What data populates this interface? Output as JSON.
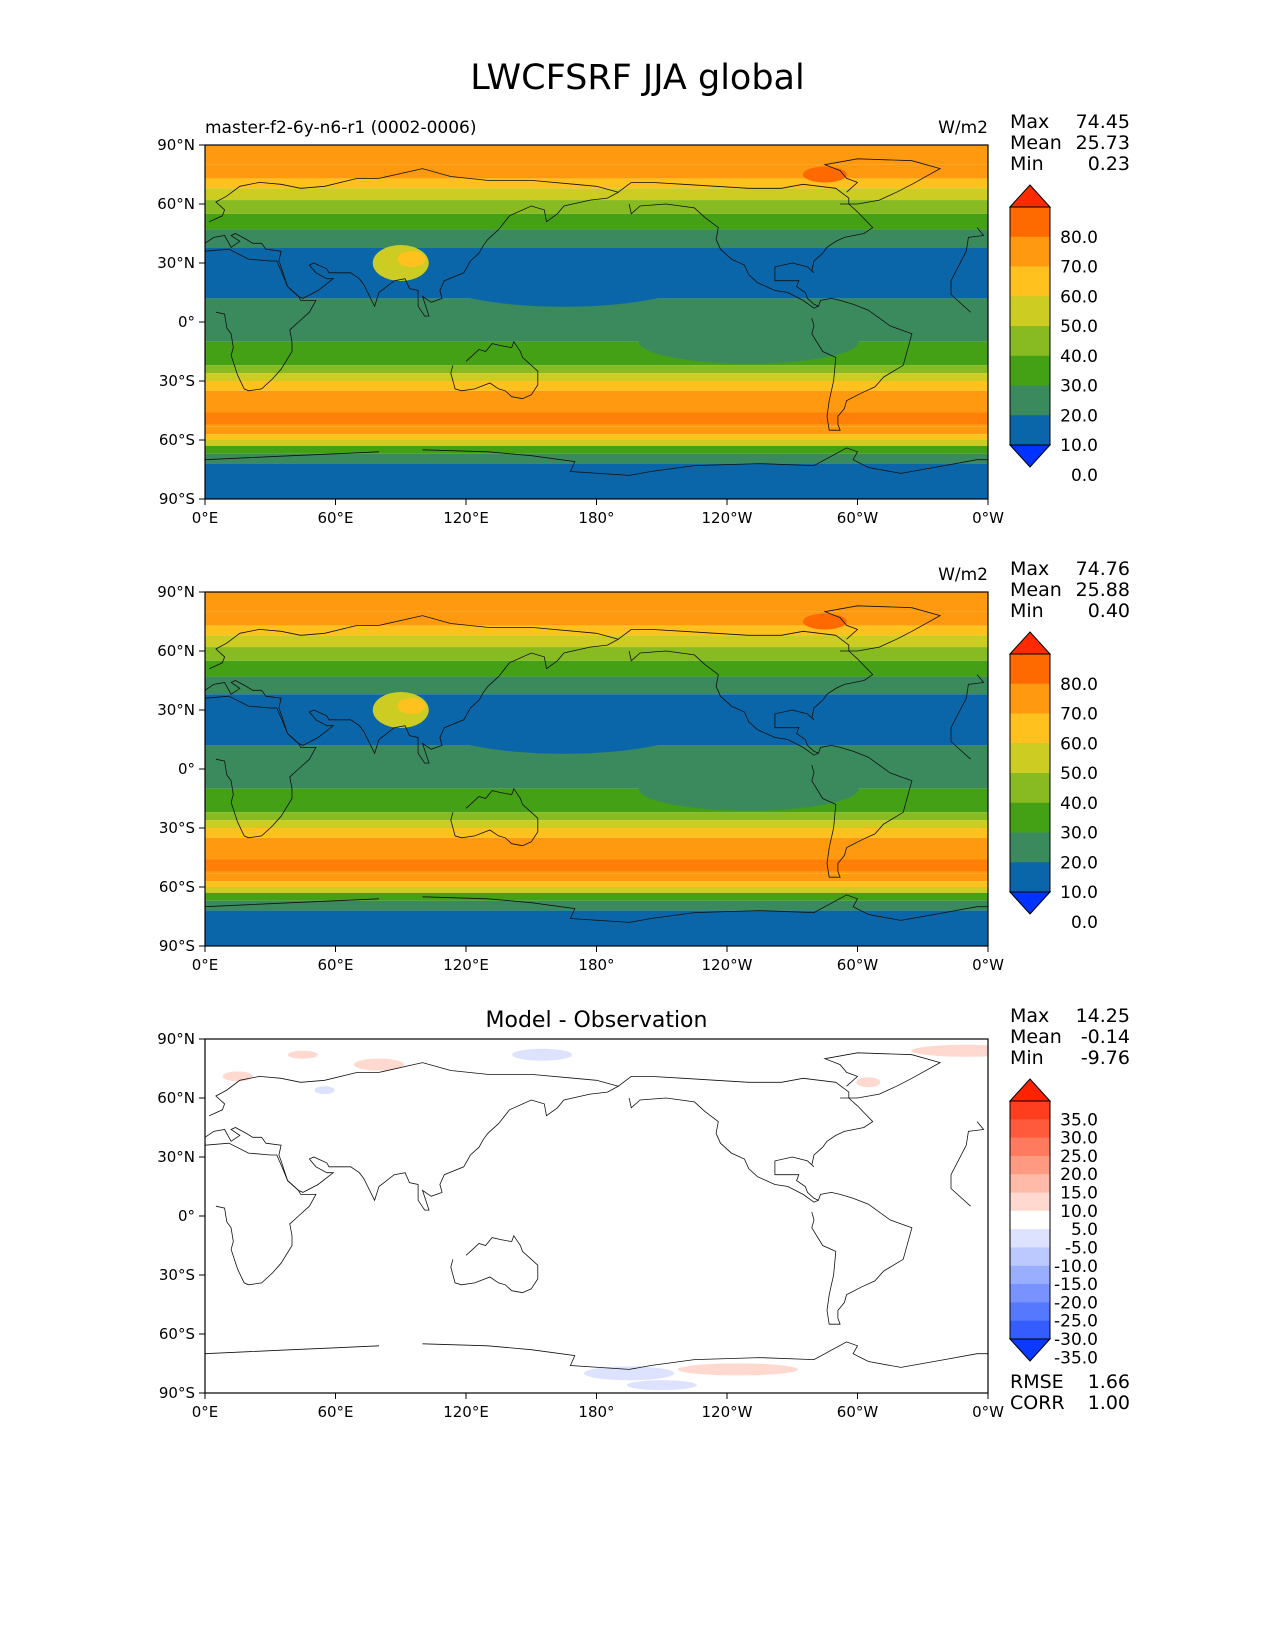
{
  "title": "LWCFSRF JJA global",
  "lon_ticks": [
    "0°E",
    "60°E",
    "120°E",
    "180°",
    "120°W",
    "60°W",
    "0°W"
  ],
  "lat_ticks": [
    "90°N",
    "60°N",
    "30°N",
    "0°",
    "30°S",
    "60°S",
    "90°S"
  ],
  "panels": [
    {
      "id": "test",
      "left_title": "master-f2-6y-n6-r1 (0002-0006)",
      "center_title": "",
      "units": "W/m2",
      "stats": [
        {
          "label": "Max",
          "value": "74.45"
        },
        {
          "label": "Mean",
          "value": "25.73"
        },
        {
          "label": "Min",
          "value": "0.23"
        }
      ],
      "colorbar": {
        "labels": [
          "80.0",
          "70.0",
          "60.0",
          "50.0",
          "40.0",
          "30.0",
          "20.0",
          "10.0",
          "0.0"
        ],
        "colors": [
          "#ff2a00",
          "#ff6a00",
          "#ff9a10",
          "#ffc11e",
          "#cccc22",
          "#88bb22",
          "#44a015",
          "#3a8a5e",
          "#0a66a8",
          "#0033ff"
        ]
      }
    },
    {
      "id": "reference",
      "left_title": "",
      "center_title": "",
      "units": "W/m2",
      "stats": [
        {
          "label": "Max",
          "value": "74.76"
        },
        {
          "label": "Mean",
          "value": "25.88"
        },
        {
          "label": "Min",
          "value": "0.40"
        }
      ],
      "colorbar": {
        "labels": [
          "80.0",
          "70.0",
          "60.0",
          "50.0",
          "40.0",
          "30.0",
          "20.0",
          "10.0",
          "0.0"
        ],
        "colors": [
          "#ff2a00",
          "#ff6a00",
          "#ff9a10",
          "#ffc11e",
          "#cccc22",
          "#88bb22",
          "#44a015",
          "#3a8a5e",
          "#0a66a8",
          "#0033ff"
        ]
      }
    },
    {
      "id": "difference",
      "left_title": "",
      "center_title": "Model - Observation",
      "units": "",
      "stats": [
        {
          "label": "Max",
          "value": "14.25"
        },
        {
          "label": "Mean",
          "value": "-0.14"
        },
        {
          "label": "Min",
          "value": "-9.76"
        }
      ],
      "colorbar": {
        "labels": [
          "35.0",
          "30.0",
          "25.0",
          "20.0",
          "15.0",
          "10.0",
          "5.0",
          "-5.0",
          "-10.0",
          "-15.0",
          "-20.0",
          "-25.0",
          "-30.0",
          "-35.0"
        ],
        "colors": [
          "#ff2200",
          "#ff3d1f",
          "#ff5a3c",
          "#ff7a5e",
          "#ff9a82",
          "#ffbaa8",
          "#ffd9cf",
          "#ffffff",
          "#dde3ff",
          "#bcc9ff",
          "#9aaeff",
          "#7893ff",
          "#5678ff",
          "#345cff",
          "#0a3aff"
        ]
      },
      "footer_stats": [
        {
          "label": "RMSE",
          "value": "1.66"
        },
        {
          "label": "CORR",
          "value": "1.00"
        }
      ]
    }
  ]
}
